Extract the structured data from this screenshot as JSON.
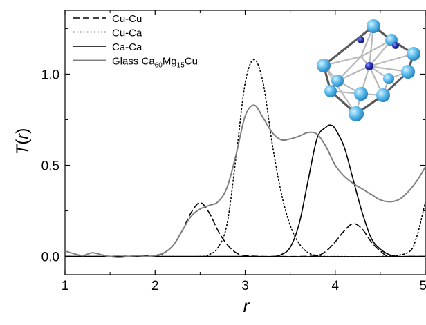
{
  "chart_data": {
    "type": "line",
    "title": "",
    "xlabel": "r",
    "ylabel": "T(r)",
    "xlim": [
      1,
      5
    ],
    "ylim": [
      -0.1,
      1.35
    ],
    "x_ticks": [
      1,
      2,
      3,
      4,
      5
    ],
    "x_tick_labels": [
      "1",
      "2",
      "3",
      "4",
      "5"
    ],
    "y_ticks": [
      0.0,
      0.5,
      1.0
    ],
    "y_tick_labels": [
      "0.0",
      "0.5",
      "1.0"
    ],
    "grid": false,
    "legend_position": "top-left",
    "inset": "cluster-structure-illustration",
    "series": [
      {
        "name": "Cu-Cu",
        "style": "dashed",
        "color": "#000000",
        "x": [
          1.0,
          1.5,
          2.0,
          2.1,
          2.2,
          2.3,
          2.4,
          2.5,
          2.6,
          2.7,
          2.8,
          2.9,
          3.0,
          3.2,
          3.4,
          3.6,
          3.8,
          3.9,
          4.0,
          4.1,
          4.2,
          4.3,
          4.4,
          4.5,
          4.6,
          4.8,
          5.0
        ],
        "y": [
          0.0,
          0.0,
          0.005,
          0.02,
          0.06,
          0.14,
          0.24,
          0.295,
          0.24,
          0.14,
          0.065,
          0.02,
          0.005,
          0.0,
          0.0,
          0.0,
          0.005,
          0.03,
          0.08,
          0.14,
          0.18,
          0.15,
          0.08,
          0.03,
          0.0,
          0.0,
          0.0
        ]
      },
      {
        "name": "Cu-Ca",
        "style": "dotted",
        "color": "#000000",
        "x": [
          1.0,
          2.0,
          2.5,
          2.6,
          2.7,
          2.8,
          2.9,
          3.0,
          3.1,
          3.2,
          3.3,
          3.4,
          3.5,
          3.6,
          3.7,
          3.8,
          3.9,
          4.0,
          4.5,
          4.8,
          4.9,
          5.0
        ],
        "y": [
          0.0,
          0.0,
          0.0,
          0.01,
          0.05,
          0.18,
          0.55,
          0.95,
          1.08,
          0.95,
          0.62,
          0.35,
          0.17,
          0.07,
          0.02,
          0.005,
          0.0,
          0.0,
          0.0,
          0.02,
          0.1,
          0.3
        ]
      },
      {
        "name": "Ca-Ca",
        "style": "solid",
        "color": "#000000",
        "x": [
          1.0,
          2.0,
          3.0,
          3.3,
          3.4,
          3.5,
          3.6,
          3.7,
          3.8,
          3.9,
          3.95,
          4.0,
          4.1,
          4.2,
          4.3,
          4.4,
          4.5,
          4.6,
          4.7,
          4.8,
          5.0
        ],
        "y": [
          0.0,
          0.0,
          0.0,
          0.0,
          0.01,
          0.05,
          0.18,
          0.42,
          0.65,
          0.71,
          0.72,
          0.7,
          0.6,
          0.42,
          0.24,
          0.1,
          0.04,
          0.01,
          0.0,
          0.0,
          0.0
        ]
      },
      {
        "name": "Glass Ca60Mg15Cu",
        "label_parts": [
          {
            "text": "Glass Ca",
            "sub": false
          },
          {
            "text": "60",
            "sub": true
          },
          {
            "text": "Mg",
            "sub": false
          },
          {
            "text": "15",
            "sub": true
          },
          {
            "text": "Cu",
            "sub": false
          }
        ],
        "style": "solid",
        "color": "#808080",
        "x": [
          1.0,
          1.1,
          1.2,
          1.3,
          1.4,
          1.5,
          1.6,
          1.7,
          1.8,
          1.9,
          2.0,
          2.1,
          2.2,
          2.3,
          2.4,
          2.5,
          2.6,
          2.7,
          2.8,
          2.9,
          3.0,
          3.1,
          3.2,
          3.3,
          3.4,
          3.5,
          3.6,
          3.7,
          3.8,
          3.9,
          4.0,
          4.1,
          4.2,
          4.3,
          4.4,
          4.5,
          4.6,
          4.7,
          4.8,
          4.9,
          5.0
        ],
        "y": [
          0.03,
          0.015,
          0.005,
          0.02,
          0.01,
          0.0,
          -0.005,
          0.0,
          0.005,
          0.0,
          0.005,
          0.02,
          0.06,
          0.14,
          0.22,
          0.26,
          0.28,
          0.3,
          0.38,
          0.56,
          0.77,
          0.83,
          0.76,
          0.68,
          0.64,
          0.645,
          0.66,
          0.68,
          0.67,
          0.6,
          0.5,
          0.44,
          0.4,
          0.37,
          0.34,
          0.31,
          0.3,
          0.31,
          0.35,
          0.41,
          0.49
        ]
      }
    ]
  }
}
